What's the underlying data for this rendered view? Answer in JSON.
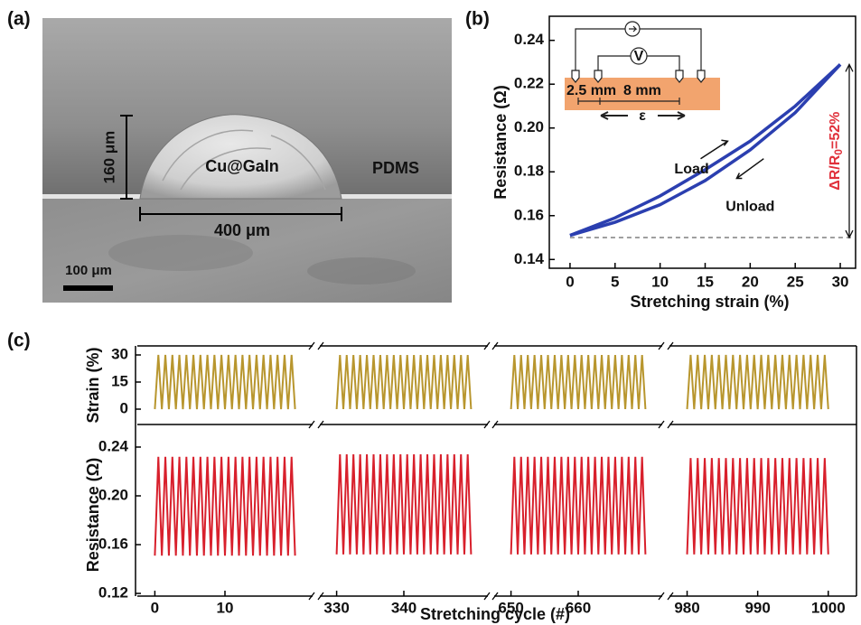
{
  "panel_labels": [
    "(a)",
    "(b)",
    "(c)"
  ],
  "image_panel": {
    "labels": {
      "height": "160 μm",
      "material": "Cu@GaIn",
      "substrate": "PDMS",
      "width": "400 μm",
      "scale": "100 μm"
    }
  },
  "chart_data": [
    {
      "type": "line",
      "x_label": "Stretching strain (%)",
      "y_label": "Resistance (Ω)",
      "x": [
        0,
        5,
        10,
        15,
        20,
        25,
        30
      ],
      "series": [
        {
          "name": "Load",
          "color": "#2b3fb0",
          "values": [
            0.151,
            0.159,
            0.169,
            0.181,
            0.194,
            0.21,
            0.229
          ]
        },
        {
          "name": "Unload",
          "color": "#2b3fb0",
          "values": [
            0.151,
            0.157,
            0.165,
            0.176,
            0.19,
            0.207,
            0.229
          ]
        }
      ],
      "xlim": [
        -2.3,
        31.7
      ],
      "ylim": [
        0.136,
        0.251
      ],
      "xticks": [
        0,
        5,
        10,
        15,
        20,
        25,
        30
      ],
      "yticks": [
        0.14,
        0.16,
        0.18,
        {
          "value": 0.2,
          "label": "0.20"
        },
        0.22,
        0.24
      ],
      "baseline": 0.15,
      "annotation": {
        "prefix": "ΔR/R",
        "sub": "0",
        "suffix": "=52%",
        "color": "#e0303a"
      },
      "inset": {
        "left_gap": "2.5 mm",
        "right_gap": "8 mm",
        "strain_symbol": "ε",
        "meter": "V"
      }
    },
    {
      "type": "broken-line",
      "x_label": "Stretching cycle (#)",
      "strain_label": "Strain (%)",
      "resistance_label": "Resistance (Ω)",
      "strain_color": "#b8962e",
      "resistance_color": "#d8202c",
      "strain_ylim": [
        -8.5,
        35
      ],
      "strain_yticks": [
        0,
        15,
        30
      ],
      "resistance_ylim": [
        0.1178,
        0.2585
      ],
      "resistance_yticks": [
        0.12,
        0.16,
        {
          "value": 0.2,
          "label": "0.20"
        },
        0.24
      ],
      "segments": [
        {
          "xlim": [
            -2.5,
            22.5
          ],
          "xticks": [
            0,
            10
          ],
          "x": [
            0,
            0.5,
            1,
            1.5,
            2,
            2.5,
            3,
            3.5,
            4,
            4.5,
            5,
            5.5,
            6,
            6.5,
            7,
            7.5,
            8,
            8.5,
            9,
            9.5,
            10,
            10.5,
            11,
            11.5,
            12,
            12.5,
            13,
            13.5,
            14,
            14.5,
            15,
            15.5,
            16,
            16.5,
            17,
            17.5,
            18,
            18.5,
            19,
            19.5,
            20
          ],
          "strain": [
            0,
            30,
            0,
            30,
            0,
            30,
            0,
            30,
            0,
            30,
            0,
            30,
            0,
            30,
            0,
            30,
            0,
            30,
            0,
            30,
            0,
            30,
            0,
            30,
            0,
            30,
            0,
            30,
            0,
            30,
            0,
            30,
            0,
            30,
            0,
            30,
            0,
            30,
            0,
            30,
            0
          ],
          "resistance": [
            0.151,
            0.232,
            0.151,
            0.232,
            0.151,
            0.232,
            0.151,
            0.232,
            0.151,
            0.232,
            0.151,
            0.232,
            0.151,
            0.232,
            0.151,
            0.232,
            0.151,
            0.232,
            0.151,
            0.232,
            0.151,
            0.232,
            0.151,
            0.232,
            0.151,
            0.232,
            0.151,
            0.232,
            0.151,
            0.232,
            0.151,
            0.232,
            0.151,
            0.232,
            0.151,
            0.232,
            0.151,
            0.232,
            0.151,
            0.232,
            0.151
          ]
        },
        {
          "xlim": [
            327.5,
            352.5
          ],
          "xticks": [
            330,
            340
          ],
          "x": [
            330,
            330.5,
            331,
            331.5,
            332,
            332.5,
            333,
            333.5,
            334,
            334.5,
            335,
            335.5,
            336,
            336.5,
            337,
            337.5,
            338,
            338.5,
            339,
            339.5,
            340,
            340.5,
            341,
            341.5,
            342,
            342.5,
            343,
            343.5,
            344,
            344.5,
            345,
            345.5,
            346,
            346.5,
            347,
            347.5,
            348,
            348.5,
            349,
            349.5,
            350
          ],
          "strain": [
            0,
            30,
            0,
            30,
            0,
            30,
            0,
            30,
            0,
            30,
            0,
            30,
            0,
            30,
            0,
            30,
            0,
            30,
            0,
            30,
            0,
            30,
            0,
            30,
            0,
            30,
            0,
            30,
            0,
            30,
            0,
            30,
            0,
            30,
            0,
            30,
            0,
            30,
            0,
            30,
            0
          ],
          "resistance": [
            0.152,
            0.234,
            0.152,
            0.234,
            0.152,
            0.234,
            0.152,
            0.234,
            0.152,
            0.234,
            0.152,
            0.234,
            0.152,
            0.234,
            0.152,
            0.234,
            0.152,
            0.234,
            0.152,
            0.234,
            0.152,
            0.234,
            0.152,
            0.234,
            0.152,
            0.234,
            0.152,
            0.234,
            0.152,
            0.234,
            0.152,
            0.234,
            0.152,
            0.234,
            0.152,
            0.234,
            0.152,
            0.234,
            0.152,
            0.234,
            0.152
          ]
        },
        {
          "xlim": [
            647.5,
            672.5
          ],
          "xticks": [
            650,
            660
          ],
          "x": [
            650,
            650.5,
            651,
            651.5,
            652,
            652.5,
            653,
            653.5,
            654,
            654.5,
            655,
            655.5,
            656,
            656.5,
            657,
            657.5,
            658,
            658.5,
            659,
            659.5,
            660,
            660.5,
            661,
            661.5,
            662,
            662.5,
            663,
            663.5,
            664,
            664.5,
            665,
            665.5,
            666,
            666.5,
            667,
            667.5,
            668,
            668.5,
            669,
            669.5,
            670
          ],
          "strain": [
            0,
            30,
            0,
            30,
            0,
            30,
            0,
            30,
            0,
            30,
            0,
            30,
            0,
            30,
            0,
            30,
            0,
            30,
            0,
            30,
            0,
            30,
            0,
            30,
            0,
            30,
            0,
            30,
            0,
            30,
            0,
            30,
            0,
            30,
            0,
            30,
            0,
            30,
            0,
            30,
            0
          ],
          "resistance": [
            0.152,
            0.232,
            0.152,
            0.232,
            0.152,
            0.232,
            0.152,
            0.232,
            0.152,
            0.232,
            0.152,
            0.232,
            0.152,
            0.232,
            0.152,
            0.232,
            0.152,
            0.232,
            0.152,
            0.232,
            0.152,
            0.232,
            0.152,
            0.232,
            0.152,
            0.232,
            0.152,
            0.232,
            0.152,
            0.232,
            0.152,
            0.232,
            0.152,
            0.232,
            0.152,
            0.232,
            0.152,
            0.232,
            0.152,
            0.232,
            0.152
          ]
        },
        {
          "xlim": [
            977.5,
            1004
          ],
          "xticks": [
            980,
            990,
            1000
          ],
          "x": [
            980,
            980.5,
            981,
            981.5,
            982,
            982.5,
            983,
            983.5,
            984,
            984.5,
            985,
            985.5,
            986,
            986.5,
            987,
            987.5,
            988,
            988.5,
            989,
            989.5,
            990,
            990.5,
            991,
            991.5,
            992,
            992.5,
            993,
            993.5,
            994,
            994.5,
            995,
            995.5,
            996,
            996.5,
            997,
            997.5,
            998,
            998.5,
            999,
            999.5,
            1000
          ],
          "strain": [
            0,
            30,
            0,
            30,
            0,
            30,
            0,
            30,
            0,
            30,
            0,
            30,
            0,
            30,
            0,
            30,
            0,
            30,
            0,
            30,
            0,
            30,
            0,
            30,
            0,
            30,
            0,
            30,
            0,
            30,
            0,
            30,
            0,
            30,
            0,
            30,
            0,
            30,
            0,
            30,
            0
          ],
          "resistance": [
            0.152,
            0.231,
            0.152,
            0.231,
            0.152,
            0.231,
            0.152,
            0.231,
            0.152,
            0.231,
            0.152,
            0.231,
            0.152,
            0.231,
            0.152,
            0.231,
            0.152,
            0.231,
            0.152,
            0.231,
            0.152,
            0.231,
            0.152,
            0.231,
            0.152,
            0.231,
            0.152,
            0.231,
            0.152,
            0.231,
            0.152,
            0.231,
            0.152,
            0.231,
            0.152,
            0.231,
            0.152,
            0.231,
            0.152,
            0.231,
            0.152
          ]
        }
      ]
    }
  ]
}
